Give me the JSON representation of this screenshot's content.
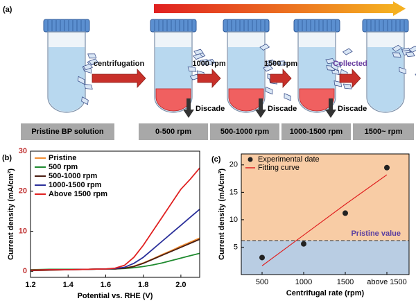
{
  "panel_a": {
    "label": "(a)",
    "tube_labels": [
      "Pristine BP solution",
      "0-500 rpm",
      "500-1000 rpm",
      "1000-1500 rpm",
      "1500~ rpm"
    ],
    "step_labels": [
      "centrifugation",
      "1000 rpm",
      "1500 rpm",
      "Collected"
    ],
    "discard_labels": [
      "Discade",
      "Discade",
      "Discade"
    ]
  },
  "chart_data": [
    {
      "type": "line",
      "panel_label": "(b)",
      "xlabel": "Potential vs. RHE (V)",
      "ylabel": "Current density (mA/cm²)",
      "x": [
        1.2,
        1.3,
        1.4,
        1.5,
        1.6,
        1.65,
        1.7,
        1.75,
        1.8,
        1.85,
        1.9,
        1.95,
        2.0,
        2.05,
        2.1
      ],
      "xlim": [
        1.2,
        2.1
      ],
      "xticks": [
        1.2,
        1.4,
        1.6,
        1.8,
        {
          "value": 2.0,
          "label": "2.0"
        }
      ],
      "ylim": [
        -1.5,
        30
      ],
      "yticks": [
        0,
        10,
        20,
        30
      ],
      "legend": "upper-left",
      "series": [
        {
          "name": "Pristine",
          "color": "#f08c30",
          "values": [
            0.2,
            0.3,
            0.4,
            0.5,
            0.6,
            0.6,
            0.8,
            1.3,
            2.1,
            3.1,
            4.2,
            5.2,
            6.3,
            7.3,
            8.3
          ]
        },
        {
          "name": "500 rpm",
          "color": "#1e8a2e",
          "values": [
            0.4,
            0.5,
            0.5,
            0.5,
            0.6,
            0.6,
            0.7,
            0.9,
            1.2,
            1.6,
            2.1,
            2.7,
            3.3,
            3.9,
            4.5
          ]
        },
        {
          "name": "500-1000 rpm",
          "color": "#4a1c10",
          "values": [
            0.2,
            0.3,
            0.4,
            0.5,
            0.6,
            0.6,
            0.8,
            1.2,
            2.0,
            3.0,
            4.0,
            5.0,
            6.0,
            7.0,
            8.0
          ]
        },
        {
          "name": "1000-1500 rpm",
          "color": "#2a2f9a",
          "values": [
            0.3,
            0.4,
            0.4,
            0.5,
            0.6,
            0.7,
            1.0,
            2.0,
            3.5,
            5.5,
            7.5,
            9.5,
            11.5,
            13.5,
            15.5
          ]
        },
        {
          "name": "Above 1500 rpm",
          "color": "#e02020",
          "values": [
            0.3,
            0.4,
            0.4,
            0.5,
            0.6,
            0.8,
            1.5,
            3.5,
            6.5,
            10,
            13.5,
            17,
            20.5,
            23,
            25.8
          ]
        }
      ]
    },
    {
      "type": "scatter",
      "panel_label": "(c)",
      "xlabel": "Centrifugal rate (rpm)",
      "ylabel": "Current density (mA/cm²)",
      "categories": [
        "500",
        "1000",
        "1500",
        "above 1500"
      ],
      "ylim": [
        0,
        22
      ],
      "yticks": [
        5,
        10,
        15,
        20
      ],
      "legend": "upper-left",
      "reference": {
        "label": "Pristine value",
        "value": 6.2,
        "color": "#5a3fa0",
        "below_color": "#b9cde3",
        "above_color": "#f8cca5"
      },
      "series": [
        {
          "name": "Experimental date",
          "kind": "points",
          "color": "#222222",
          "values": [
            3.1,
            5.6,
            11.2,
            19.5
          ]
        },
        {
          "name": "Fitting curve",
          "kind": "line",
          "color": "#e02020",
          "values": [
            1.6,
            7.2,
            12.8,
            18.2
          ]
        }
      ]
    }
  ]
}
